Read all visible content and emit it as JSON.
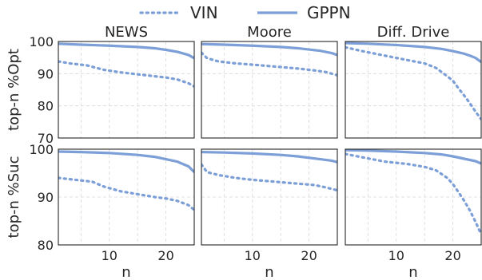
{
  "legend": {
    "items": [
      {
        "label": "VIN",
        "style": "dotted"
      },
      {
        "label": "GPPN",
        "style": "solid"
      }
    ]
  },
  "colors": {
    "vin": "#7c9fd8",
    "gppn": "#7c9fd8"
  },
  "chart_data": [
    {
      "type": "line",
      "title": "NEWS",
      "row": 0,
      "col": 0,
      "ylabel": "top-n %Opt",
      "xlabel": "",
      "xlim": [
        1,
        25
      ],
      "ylim": [
        70,
        100
      ],
      "yticks": [
        70,
        80,
        90,
        100
      ],
      "xticks": [],
      "grid": true,
      "series": [
        {
          "name": "VIN",
          "x": [
            1,
            3,
            6,
            9,
            12,
            15,
            18,
            20,
            22,
            24,
            25
          ],
          "values": [
            93.8,
            93.2,
            92.6,
            91.2,
            90.4,
            89.8,
            89.2,
            88.8,
            88.2,
            87.0,
            86.0
          ]
        },
        {
          "name": "GPPN",
          "x": [
            1,
            5,
            10,
            15,
            18,
            20,
            22,
            23,
            24,
            25
          ],
          "values": [
            99.3,
            99.0,
            98.7,
            98.3,
            97.9,
            97.4,
            96.8,
            96.3,
            95.8,
            94.8
          ]
        }
      ]
    },
    {
      "type": "line",
      "title": "Moore",
      "row": 0,
      "col": 1,
      "ylabel": "",
      "xlabel": "",
      "xlim": [
        1,
        25
      ],
      "ylim": [
        70,
        100
      ],
      "yticks": [
        70,
        80,
        90,
        100
      ],
      "xticks": [],
      "grid": true,
      "series": [
        {
          "name": "VIN",
          "x": [
            1,
            2,
            4,
            7,
            10,
            14,
            18,
            21,
            23,
            25
          ],
          "values": [
            96.5,
            94.8,
            93.8,
            93.2,
            92.8,
            92.2,
            91.6,
            91.0,
            90.5,
            89.5
          ]
        },
        {
          "name": "GPPN",
          "x": [
            1,
            5,
            10,
            15,
            18,
            20,
            22,
            24,
            25
          ],
          "values": [
            99.2,
            99.0,
            98.7,
            98.3,
            97.9,
            97.5,
            97.1,
            96.4,
            95.8
          ]
        }
      ]
    },
    {
      "type": "line",
      "title": "Diff. Drive",
      "row": 0,
      "col": 2,
      "ylabel": "",
      "xlabel": "",
      "xlim": [
        1,
        25
      ],
      "ylim": [
        70,
        100
      ],
      "yticks": [
        70,
        80,
        90,
        100
      ],
      "xticks": [],
      "grid": true,
      "series": [
        {
          "name": "VIN",
          "x": [
            1,
            4,
            8,
            12,
            15,
            17,
            19,
            20,
            21,
            22,
            23,
            24,
            25
          ],
          "values": [
            98.2,
            97.0,
            95.6,
            94.2,
            93.2,
            91.8,
            89.2,
            87.8,
            85.4,
            83.2,
            80.8,
            78.2,
            75.8
          ]
        },
        {
          "name": "GPPN",
          "x": [
            1,
            5,
            10,
            15,
            18,
            20,
            22,
            23,
            24,
            25
          ],
          "values": [
            99.5,
            99.3,
            98.9,
            98.3,
            97.7,
            97.0,
            96.2,
            95.6,
            94.9,
            93.6
          ]
        }
      ]
    },
    {
      "type": "line",
      "title": "",
      "row": 1,
      "col": 0,
      "ylabel": "top-n %Suc",
      "xlabel": "n",
      "xlim": [
        1,
        25
      ],
      "ylim": [
        80,
        100
      ],
      "yticks": [
        80,
        90,
        100
      ],
      "xticks": [
        10,
        20
      ],
      "grid": true,
      "series": [
        {
          "name": "VIN",
          "x": [
            1,
            4,
            7,
            9,
            12,
            15,
            18,
            20,
            22,
            24,
            25
          ],
          "values": [
            94.0,
            93.6,
            93.2,
            92.2,
            91.2,
            90.6,
            90.0,
            89.7,
            89.2,
            88.3,
            87.3
          ]
        },
        {
          "name": "GPPN",
          "x": [
            1,
            5,
            10,
            15,
            18,
            20,
            22,
            24,
            25
          ],
          "values": [
            99.5,
            99.4,
            99.2,
            98.8,
            98.4,
            97.9,
            97.4,
            96.4,
            95.2
          ]
        }
      ]
    },
    {
      "type": "line",
      "title": "",
      "row": 1,
      "col": 1,
      "ylabel": "",
      "xlabel": "n",
      "xlim": [
        1,
        25
      ],
      "ylim": [
        80,
        100
      ],
      "yticks": [
        80,
        90,
        100
      ],
      "xticks": [
        10,
        20
      ],
      "grid": true,
      "series": [
        {
          "name": "VIN",
          "x": [
            1,
            2,
            4,
            7,
            10,
            14,
            18,
            21,
            23,
            25
          ],
          "values": [
            96.8,
            95.2,
            94.6,
            94.0,
            93.6,
            93.2,
            92.8,
            92.5,
            92.0,
            91.4
          ]
        },
        {
          "name": "GPPN",
          "x": [
            1,
            5,
            10,
            15,
            18,
            20,
            22,
            24,
            25
          ],
          "values": [
            99.4,
            99.3,
            99.1,
            98.8,
            98.5,
            98.2,
            97.9,
            97.6,
            97.3
          ]
        }
      ]
    },
    {
      "type": "line",
      "title": "",
      "row": 1,
      "col": 2,
      "ylabel": "",
      "xlabel": "n",
      "xlim": [
        1,
        25
      ],
      "ylim": [
        80,
        100
      ],
      "yticks": [
        80,
        90,
        100
      ],
      "xticks": [
        10,
        20
      ],
      "grid": true,
      "series": [
        {
          "name": "VIN",
          "x": [
            1,
            4,
            8,
            12,
            15,
            17,
            19,
            20,
            21,
            22,
            23,
            24,
            25
          ],
          "values": [
            99.0,
            98.3,
            97.4,
            96.9,
            96.3,
            95.6,
            94.0,
            92.7,
            91.0,
            89.2,
            87.2,
            84.8,
            82.2
          ]
        },
        {
          "name": "GPPN",
          "x": [
            1,
            5,
            10,
            15,
            18,
            20,
            22,
            24,
            25
          ],
          "values": [
            99.8,
            99.7,
            99.5,
            99.2,
            98.9,
            98.5,
            98.0,
            97.5,
            97.0
          ]
        }
      ]
    }
  ]
}
